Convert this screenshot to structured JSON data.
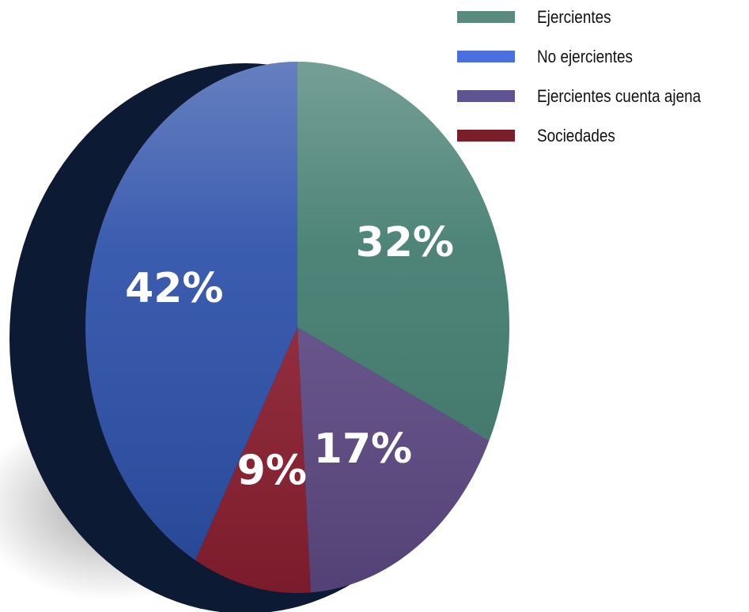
{
  "chart_data": {
    "type": "pie",
    "title": "",
    "slices": [
      {
        "label": "Ejercientes",
        "value": 32,
        "display": "32%",
        "color": "#3f7a6d"
      },
      {
        "label": "Ejercientes cuenta ajena",
        "value": 17,
        "display": "17%",
        "color": "#5e4a85"
      },
      {
        "label": "Sociedades",
        "value": 9,
        "display": "9%",
        "color": "#8c1e30"
      },
      {
        "label": "No ejercientes",
        "value": 42,
        "display": "42%",
        "color": "#2a4ea8"
      }
    ],
    "legend": {
      "placement": "top-right",
      "items": [
        {
          "label": "Ejercientes",
          "color": "#5a8a7e"
        },
        {
          "label": "No ejercientes",
          "color": "#4a6fe0"
        },
        {
          "label": "Ejercientes cuenta ajena",
          "color": "#5e5491"
        },
        {
          "label": "Sociedades",
          "color": "#7a1f2a"
        }
      ]
    }
  }
}
